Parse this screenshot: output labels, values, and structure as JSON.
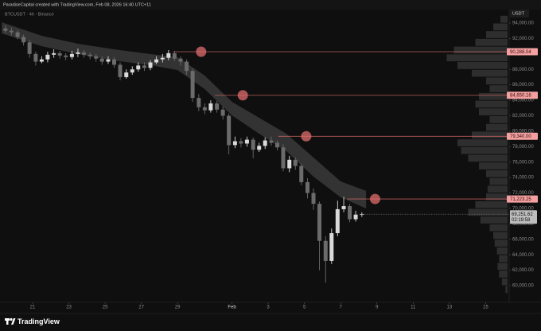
{
  "chart_data": {
    "type": "candlestick",
    "header": "ParadiseCapital created with TradingView.com, Feb 08, 2026 16:40 UTC+11",
    "symbol_label": "BTCUSDT · 4h · Binance",
    "currency": "USDT",
    "brand": "TradingView",
    "up_color": "#d9d9d9",
    "down_color": "#6b6b6b",
    "x": [
      19.5,
      19.83,
      20.17,
      20.5,
      20.83,
      21.17,
      21.5,
      21.83,
      22.17,
      22.5,
      22.83,
      23.17,
      23.5,
      23.83,
      24.17,
      24.5,
      24.83,
      25.17,
      25.5,
      25.83,
      26.17,
      26.5,
      26.83,
      27.17,
      27.5,
      27.83,
      28.17,
      28.5,
      28.83,
      29.17,
      29.5,
      29.83,
      30.17,
      30.5,
      30.83,
      31.17,
      31.5,
      31.83,
      32.17,
      32.5,
      32.83,
      33.17,
      33.5,
      33.83,
      34.17,
      34.5,
      34.83,
      35.17,
      35.5,
      35.83,
      36.17,
      36.5,
      36.83,
      37.17,
      37.5,
      37.83,
      38.17,
      38.5,
      38.83,
      39.17
    ],
    "open": [
      93300,
      93000,
      92800,
      92200,
      91500,
      90000,
      89000,
      89300,
      89900,
      90100,
      89800,
      89600,
      90000,
      90200,
      89900,
      89700,
      89400,
      89000,
      89300,
      88600,
      87000,
      87600,
      88000,
      88500,
      88200,
      88900,
      89300,
      89500,
      90100,
      89400,
      89000,
      87800,
      84300,
      83100,
      82700,
      83600,
      82800,
      82000,
      78200,
      78700,
      78400,
      78900,
      77600,
      78100,
      78800,
      78500,
      77900,
      75200,
      76300,
      75500,
      73400,
      72000,
      70600,
      65800,
      63200,
      66800,
      69900,
      70300,
      68600,
      69200
    ],
    "high": [
      93700,
      93400,
      93100,
      92500,
      91800,
      90300,
      89700,
      90300,
      90600,
      90400,
      90100,
      90400,
      90700,
      90500,
      90200,
      90000,
      89700,
      89700,
      89600,
      88900,
      88000,
      88400,
      88900,
      88900,
      89200,
      89700,
      90000,
      90500,
      90400,
      89700,
      89300,
      88100,
      84800,
      83600,
      84000,
      83900,
      83200,
      82300,
      79300,
      79100,
      79300,
      79200,
      78500,
      79200,
      79300,
      78800,
      78300,
      76800,
      76600,
      75800,
      73900,
      72600,
      70900,
      66400,
      67400,
      71000,
      71500,
      70600,
      69700,
      69500
    ],
    "low": [
      92700,
      92400,
      91900,
      91100,
      89500,
      88500,
      88800,
      88900,
      89500,
      89400,
      89200,
      89300,
      89600,
      89500,
      89300,
      89000,
      88600,
      88700,
      88200,
      86600,
      86800,
      87300,
      87700,
      87800,
      87900,
      88700,
      88900,
      89200,
      89100,
      88500,
      87300,
      83800,
      82600,
      82200,
      82400,
      82400,
      81500,
      77000,
      77800,
      77900,
      78000,
      76500,
      77300,
      77700,
      78100,
      77500,
      74800,
      74700,
      75000,
      73000,
      71300,
      69800,
      62000,
      60400,
      62800,
      66400,
      69500,
      68200,
      68300,
      68900
    ],
    "close": [
      93000,
      92800,
      92200,
      91500,
      90000,
      89000,
      89300,
      89900,
      90100,
      89800,
      89600,
      90000,
      90200,
      89900,
      89700,
      89400,
      89000,
      89300,
      88600,
      87000,
      87600,
      88000,
      88500,
      88200,
      88900,
      89300,
      89500,
      90100,
      89400,
      89000,
      87800,
      84300,
      83100,
      82700,
      83600,
      82800,
      82000,
      78200,
      78700,
      78400,
      78900,
      77600,
      78100,
      78800,
      78500,
      77900,
      75200,
      76300,
      75500,
      73400,
      72000,
      70600,
      65800,
      63200,
      66800,
      69900,
      70300,
      68600,
      69200,
      69251
    ],
    "ribbon": {
      "color": "#3a3a3a",
      "x": [
        19.3,
        21.5,
        23.5,
        25.5,
        27.5,
        29,
        30.5,
        32,
        33.5,
        35,
        36.5,
        38,
        39.4
      ],
      "upper": [
        94100,
        92350,
        91320,
        90600,
        89980,
        89570,
        87200,
        83800,
        81740,
        79680,
        76590,
        73500,
        72270
      ],
      "lower": [
        92660,
        91010,
        89980,
        89160,
        88540,
        87920,
        85450,
        82050,
        79680,
        77420,
        74120,
        71440,
        70000
      ]
    },
    "level_color": "#e06c6c",
    "levels": [
      {
        "value": 90288.04,
        "label": "90,288.04"
      },
      {
        "value": 84650.16,
        "label": "84,650.16"
      },
      {
        "value": 79340.0,
        "label": "79,340.00"
      },
      {
        "value": 71223.25,
        "label": "71,223.25"
      }
    ],
    "level_marker_x": [
      30.3,
      32.6,
      36.1,
      39.9
    ],
    "last_price": {
      "value": 69251.62,
      "label": "69,251.62"
    },
    "countdown": "02:19:58",
    "volume_profile": {
      "color": "#2e2e2e",
      "levels": [
        58000,
        59000,
        60000,
        61000,
        62000,
        63000,
        64000,
        65000,
        66000,
        67000,
        68000,
        69000,
        70000,
        71000,
        72000,
        73000,
        74000,
        75000,
        76000,
        77000,
        78000,
        79000,
        80000,
        81000,
        82000,
        83000,
        84000,
        85000,
        86000,
        87000,
        88000,
        89000,
        90000,
        91000,
        92000,
        93000,
        94000
      ],
      "values": [
        0,
        3,
        8,
        12,
        14,
        12,
        15,
        18,
        20,
        25,
        38,
        55,
        45,
        30,
        28,
        25,
        30,
        40,
        55,
        65,
        70,
        50,
        30,
        25,
        40,
        45,
        40,
        25,
        30,
        50,
        70,
        85,
        75,
        45,
        30,
        20,
        10
      ]
    },
    "xlim": [
      19.2,
      47.3
    ],
    "ylim": [
      57840,
      95750
    ],
    "xticks": [
      21,
      23,
      25,
      27,
      29,
      {
        "value": 32,
        "label": "Feb"
      },
      {
        "value": 34,
        "label": "3"
      },
      {
        "value": 36,
        "label": "5"
      },
      {
        "value": 38,
        "label": "7"
      },
      {
        "value": 40,
        "label": "9"
      },
      {
        "value": 42,
        "label": "11"
      },
      {
        "value": 44,
        "label": "13"
      },
      {
        "value": 46,
        "label": "15"
      }
    ],
    "yticks": [
      {
        "value": 60000,
        "label": "60,000.00"
      },
      {
        "value": 62000,
        "label": "62,000.00"
      },
      {
        "value": 64000,
        "label": "64,000.00"
      },
      {
        "value": 66000,
        "label": "66,000.00"
      },
      {
        "value": 68000,
        "label": "68,000.00"
      },
      {
        "value": 70000,
        "label": "70,000.00"
      },
      {
        "value": 72000,
        "label": "72,000.00"
      },
      {
        "value": 74000,
        "label": "74,000.00"
      },
      {
        "value": 76000,
        "label": "76,000.00"
      },
      {
        "value": 78000,
        "label": "78,000.00"
      },
      {
        "value": 80000,
        "label": "80,000.00"
      },
      {
        "value": 82000,
        "label": "82,000.00"
      },
      {
        "value": 84000,
        "label": "84,000.00"
      },
      {
        "value": 86000,
        "label": "86,000.00"
      },
      {
        "value": 88000,
        "label": "88,000.00"
      },
      {
        "value": 90000,
        "label": "90,000.00"
      },
      {
        "value": 92000,
        "label": "92,000.00"
      },
      {
        "value": 94000,
        "label": "94,000.00"
      }
    ]
  }
}
